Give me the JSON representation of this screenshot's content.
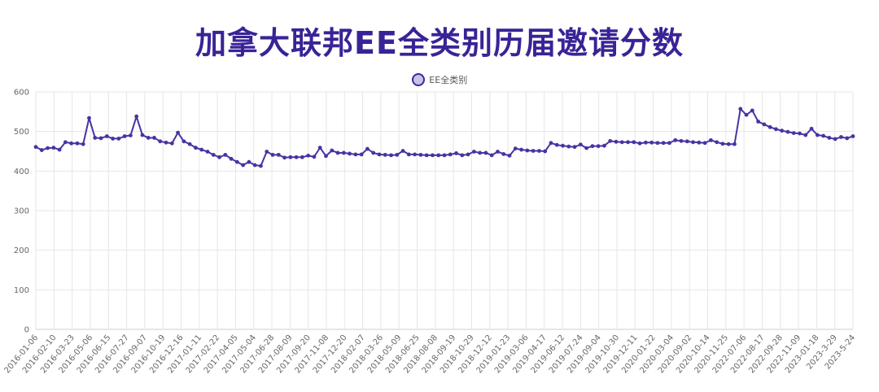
{
  "chart_data": {
    "type": "line",
    "title": "加拿大联邦EE全类别历届邀请分数",
    "legend": "EE全类别",
    "legend_position": "top-center",
    "grid": true,
    "colors": {
      "line": "#4a32a3",
      "point_fill": "#4a32a3",
      "legend_fill": "#c9c1ea"
    },
    "ylim": [
      0,
      600
    ],
    "y_ticks": [
      0,
      100,
      200,
      300,
      400,
      500,
      600
    ],
    "x_tick_labels": [
      "2016-01-06",
      "2016-02-10",
      "2016-03-23",
      "2016-05-06",
      "2016-06-15",
      "2016-07-27",
      "2016-09-07",
      "2016-10-19",
      "2016-12-16",
      "2017-01-11",
      "2017-02-22",
      "2017-04-05",
      "2017-05-04",
      "2017-06-28",
      "2017-08-09",
      "2017-09-20",
      "2017-11-08",
      "2017-12-20",
      "2018-02-07",
      "2018-03-26",
      "2018-05-09",
      "2018-06-25",
      "2018-08-08",
      "2018-09-19",
      "2018-10-29",
      "2018-12-12",
      "2019-01-23",
      "2019-03-06",
      "2019-04-17",
      "2019-06-12",
      "2019-07-24",
      "2019-09-04",
      "2019-10-30",
      "2019-12-11",
      "2020-01-22",
      "2020-03-04",
      "2020-09-02",
      "2020-10-14",
      "2020-11-25",
      "2022-07-06",
      "2022-08-17",
      "2022-09-28",
      "2022-11-09",
      "2023-01-18",
      "2023-3-29",
      "2023-5-24"
    ],
    "series": [
      {
        "name": "EE全类别",
        "values": [
          461,
          453,
          458,
          459,
          454,
          473,
          470,
          470,
          468,
          534,
          484,
          483,
          488,
          482,
          482,
          488,
          490,
          538,
          491,
          484,
          484,
          475,
          472,
          470,
          497,
          475,
          468,
          459,
          454,
          449,
          441,
          435,
          441,
          431,
          423,
          415,
          423,
          415,
          413,
          449,
          441,
          441,
          434,
          435,
          435,
          435,
          439,
          436,
          459,
          438,
          452,
          446,
          446,
          444,
          442,
          442,
          456,
          446,
          442,
          441,
          440,
          441,
          451,
          442,
          442,
          441,
          440,
          440,
          440,
          440,
          442,
          445,
          440,
          442,
          449,
          446,
          446,
          440,
          449,
          443,
          439,
          457,
          454,
          452,
          451,
          451,
          450,
          471,
          466,
          464,
          462,
          461,
          467,
          458,
          463,
          463,
          464,
          476,
          474,
          473,
          473,
          473,
          470,
          472,
          472,
          471,
          471,
          471,
          478,
          476,
          475,
          473,
          472,
          471,
          478,
          473,
          469,
          468,
          468,
          557,
          542,
          553,
          525,
          518,
          511,
          506,
          502,
          499,
          496,
          495,
          491,
          507,
          491,
          489,
          484,
          481,
          486,
          483,
          488
        ]
      }
    ]
  }
}
